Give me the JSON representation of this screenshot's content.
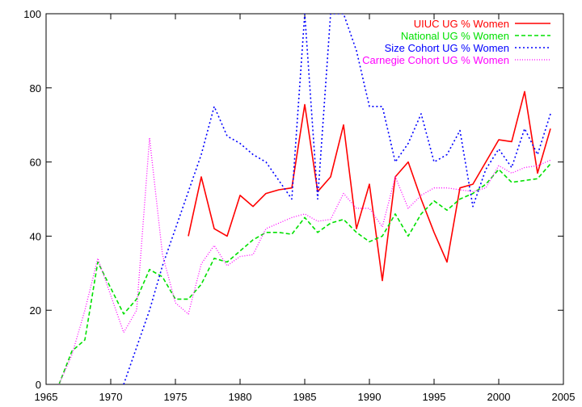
{
  "chart_data": {
    "type": "line",
    "title": "",
    "xlabel": "",
    "ylabel": "",
    "xlim": [
      1965,
      2005
    ],
    "ylim": [
      0,
      100
    ],
    "x_ticks": [
      1965,
      1970,
      1975,
      1980,
      1985,
      1990,
      1995,
      2000,
      2005
    ],
    "y_ticks": [
      0,
      20,
      40,
      60,
      80,
      100
    ],
    "grid": false,
    "legend_position": "top-right",
    "series": [
      {
        "name": "UIUC UG % Women",
        "color": "#ff0000",
        "dash": "solid",
        "x": [
          1976,
          1977,
          1978,
          1979,
          1980,
          1981,
          1982,
          1983,
          1984,
          1985,
          1986,
          1987,
          1988,
          1989,
          1990,
          1991,
          1992,
          1993,
          1994,
          1995,
          1996,
          1997,
          1998,
          1999,
          2000,
          2001,
          2002,
          2003,
          2004
        ],
        "y": [
          40,
          56,
          42,
          40,
          51,
          48,
          51.5,
          52.5,
          53,
          75.5,
          52,
          56,
          70,
          42,
          54,
          28,
          56,
          60,
          50,
          41,
          33,
          53,
          54,
          60,
          66,
          65.5,
          79,
          57,
          69
        ]
      },
      {
        "name": "National UG % Women",
        "color": "#00e000",
        "dash": "dashed",
        "x": [
          1966,
          1967,
          1968,
          1969,
          1970,
          1971,
          1972,
          1973,
          1974,
          1975,
          1976,
          1977,
          1978,
          1979,
          1980,
          1981,
          1982,
          1983,
          1984,
          1985,
          1986,
          1987,
          1988,
          1989,
          1990,
          1991,
          1992,
          1993,
          1994,
          1995,
          1996,
          1997,
          1998,
          1999,
          2000,
          2001,
          2002,
          2003,
          2004
        ],
        "y": [
          0,
          9,
          12,
          33,
          26,
          19,
          23,
          31,
          29,
          23,
          23,
          27,
          34,
          33,
          36,
          39,
          41,
          41,
          40.5,
          45,
          41,
          43.5,
          44.5,
          41,
          38.5,
          40,
          46,
          40,
          46,
          49.5,
          47,
          50,
          51.5,
          54,
          58,
          54.5,
          55,
          55.5,
          59.5
        ]
      },
      {
        "name": "Size Cohort UG % Women",
        "color": "#0000ff",
        "dash": "dotted",
        "x": [
          1971,
          1972,
          1973,
          1974,
          1975,
          1976,
          1977,
          1978,
          1979,
          1980,
          1981,
          1982,
          1983,
          1984,
          1985,
          1986,
          1987,
          1988,
          1989,
          1990,
          1991,
          1992,
          1993,
          1994,
          1995,
          1996,
          1997,
          1998,
          1999,
          2000,
          2001,
          2002,
          2003,
          2004
        ],
        "y": [
          0,
          10,
          20,
          32,
          42,
          52,
          62,
          75,
          67,
          65,
          62,
          60,
          55,
          50,
          100,
          50,
          100,
          100,
          90,
          75,
          75,
          60,
          65,
          73,
          60,
          62,
          68.5,
          48,
          58,
          63.5,
          58.5,
          69,
          62,
          73
        ]
      },
      {
        "name": "Carnegie Cohort UG % Women",
        "color": "#ff00ff",
        "dash": "dotted-fine",
        "x": [
          1966,
          1967,
          1968,
          1969,
          1970,
          1971,
          1972,
          1973,
          1974,
          1975,
          1976,
          1977,
          1978,
          1979,
          1980,
          1981,
          1982,
          1983,
          1984,
          1985,
          1986,
          1987,
          1988,
          1989,
          1990,
          1991,
          1992,
          1993,
          1994,
          1995,
          1996,
          1997,
          1998,
          1999,
          2000,
          2001,
          2002,
          2003,
          2004
        ],
        "y": [
          0,
          8,
          20,
          34,
          24,
          14,
          20,
          66.5,
          35,
          22,
          19,
          32.5,
          37.5,
          32,
          34.5,
          35,
          42,
          43.5,
          45,
          46,
          44,
          44.5,
          51.5,
          47.5,
          47.5,
          42.5,
          56,
          47.5,
          51,
          53,
          53,
          52.5,
          52,
          53,
          59,
          57,
          58.5,
          59,
          60.5
        ]
      }
    ]
  }
}
